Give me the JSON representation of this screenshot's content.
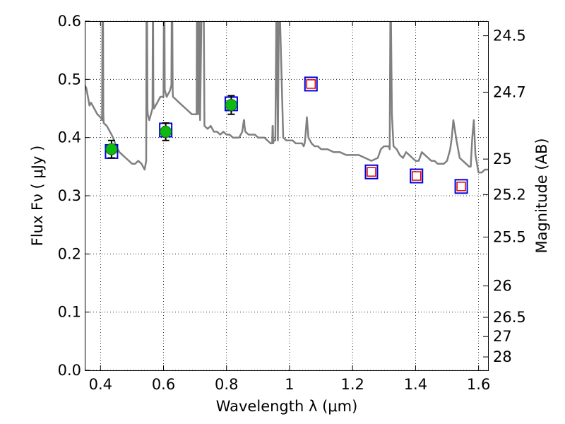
{
  "chart_data": {
    "type": "scatter",
    "xlabel": "Wavelength  λ (μm)",
    "ylabel": "Flux  Fν  ( μJy )",
    "y2label": "Magnitude (AB)",
    "xlim": [
      0.35,
      1.63
    ],
    "ylim": [
      0.0,
      0.6
    ],
    "grid": true,
    "x_ticks": [
      0.4,
      0.6,
      0.8,
      1.0,
      1.2,
      1.4,
      1.6
    ],
    "x_tick_labels": [
      "0.4",
      "0.6",
      "0.8",
      "1",
      "1.2",
      "1.4",
      "1.6"
    ],
    "y_ticks": [
      0.0,
      0.1,
      0.2,
      0.3,
      0.4,
      0.5,
      0.6
    ],
    "y_tick_labels": [
      "0.0",
      "0.1",
      "0.2",
      "0.3",
      "0.4",
      "0.5",
      "0.6"
    ],
    "y2_ticks": [
      {
        "label": "24.5",
        "flux": 0.575
      },
      {
        "label": "24.7",
        "flux": 0.478
      },
      {
        "label": "25",
        "flux": 0.363
      },
      {
        "label": "25.2",
        "flux": 0.302
      },
      {
        "label": "25.5",
        "flux": 0.229
      },
      {
        "label": "26",
        "flux": 0.145
      },
      {
        "label": "26.5",
        "flux": 0.091
      },
      {
        "label": "27",
        "flux": 0.058
      },
      {
        "label": "28",
        "flux": 0.023
      }
    ],
    "colors": {
      "model": "#808080",
      "observed": "#11b811",
      "synthetic_border": "#0000dd",
      "upper_limit_border": "#dd0000",
      "errorbar": "#000000"
    },
    "series": [
      {
        "type": "line",
        "x": [
          0.35,
          0.355,
          0.36,
          0.365,
          0.37,
          0.38,
          0.39,
          0.4,
          0.405,
          0.406,
          0.407,
          0.408,
          0.409,
          0.41,
          0.42,
          0.43,
          0.44,
          0.45,
          0.46,
          0.47,
          0.48,
          0.49,
          0.5,
          0.51,
          0.52,
          0.53,
          0.535,
          0.54,
          0.545,
          0.546,
          0.547,
          0.548,
          0.549,
          0.55,
          0.555,
          0.56,
          0.565,
          0.566,
          0.567,
          0.568,
          0.57,
          0.58,
          0.59,
          0.6,
          0.601,
          0.602,
          0.603,
          0.604,
          0.605,
          0.61,
          0.62,
          0.625,
          0.626,
          0.627,
          0.628,
          0.629,
          0.63,
          0.64,
          0.65,
          0.66,
          0.67,
          0.68,
          0.69,
          0.7,
          0.705,
          0.706,
          0.707,
          0.708,
          0.71,
          0.712,
          0.714,
          0.716,
          0.72,
          0.722,
          0.724,
          0.726,
          0.728,
          0.73,
          0.74,
          0.75,
          0.76,
          0.77,
          0.78,
          0.79,
          0.8,
          0.81,
          0.82,
          0.83,
          0.84,
          0.85,
          0.855,
          0.856,
          0.857,
          0.86,
          0.87,
          0.88,
          0.89,
          0.9,
          0.91,
          0.92,
          0.93,
          0.94,
          0.945,
          0.946,
          0.947,
          0.948,
          0.95,
          0.955,
          0.958,
          0.96,
          0.963,
          0.966,
          0.97,
          0.98,
          0.99,
          1.0,
          1.01,
          1.02,
          1.03,
          1.04,
          1.045,
          1.048,
          1.05,
          1.055,
          1.06,
          1.07,
          1.08,
          1.09,
          1.1,
          1.12,
          1.14,
          1.16,
          1.18,
          1.2,
          1.22,
          1.24,
          1.26,
          1.28,
          1.29,
          1.3,
          1.31,
          1.315,
          1.318,
          1.32,
          1.322,
          1.325,
          1.33,
          1.34,
          1.35,
          1.36,
          1.37,
          1.38,
          1.39,
          1.4,
          1.41,
          1.42,
          1.43,
          1.44,
          1.45,
          1.46,
          1.47,
          1.48,
          1.49,
          1.5,
          1.505,
          1.51,
          1.515,
          1.52,
          1.53,
          1.54,
          1.55,
          1.56,
          1.57,
          1.575,
          1.58,
          1.585,
          1.59,
          1.6,
          1.61,
          1.62,
          1.63
        ],
        "y": [
          0.49,
          0.485,
          0.47,
          0.455,
          0.46,
          0.45,
          0.44,
          0.435,
          0.43,
          0.6,
          0.6,
          0.6,
          0.44,
          0.425,
          0.42,
          0.41,
          0.4,
          0.385,
          0.375,
          0.37,
          0.365,
          0.36,
          0.355,
          0.355,
          0.36,
          0.355,
          0.35,
          0.345,
          0.36,
          0.6,
          0.6,
          0.6,
          0.45,
          0.44,
          0.43,
          0.44,
          0.45,
          0.6,
          0.6,
          0.46,
          0.45,
          0.46,
          0.47,
          0.47,
          0.6,
          0.6,
          0.6,
          0.48,
          0.48,
          0.47,
          0.48,
          0.49,
          0.6,
          0.6,
          0.6,
          0.48,
          0.47,
          0.465,
          0.46,
          0.455,
          0.45,
          0.445,
          0.44,
          0.44,
          0.44,
          0.6,
          0.6,
          0.6,
          0.44,
          0.6,
          0.6,
          0.43,
          0.6,
          0.6,
          0.6,
          0.6,
          0.6,
          0.42,
          0.415,
          0.42,
          0.41,
          0.41,
          0.405,
          0.41,
          0.405,
          0.405,
          0.4,
          0.4,
          0.4,
          0.41,
          0.43,
          0.43,
          0.42,
          0.41,
          0.405,
          0.405,
          0.405,
          0.4,
          0.4,
          0.4,
          0.395,
          0.39,
          0.39,
          0.42,
          0.42,
          0.39,
          0.395,
          0.395,
          0.6,
          0.6,
          0.395,
          0.6,
          0.6,
          0.4,
          0.395,
          0.395,
          0.395,
          0.39,
          0.39,
          0.39,
          0.385,
          0.39,
          0.4,
          0.435,
          0.4,
          0.39,
          0.385,
          0.385,
          0.38,
          0.38,
          0.375,
          0.375,
          0.37,
          0.37,
          0.37,
          0.365,
          0.36,
          0.365,
          0.38,
          0.385,
          0.385,
          0.385,
          0.38,
          0.6,
          0.6,
          0.44,
          0.385,
          0.38,
          0.37,
          0.365,
          0.375,
          0.37,
          0.365,
          0.36,
          0.36,
          0.375,
          0.37,
          0.365,
          0.36,
          0.36,
          0.355,
          0.355,
          0.355,
          0.36,
          0.37,
          0.38,
          0.4,
          0.43,
          0.395,
          0.365,
          0.36,
          0.355,
          0.35,
          0.35,
          0.4,
          0.43,
          0.37,
          0.34,
          0.34,
          0.345,
          0.345
        ]
      },
      {
        "type": "points_with_errors",
        "x": [
          0.435,
          0.607,
          0.815
        ],
        "y": [
          0.38,
          0.41,
          0.456
        ],
        "yerr": [
          0.015,
          0.015,
          0.016
        ]
      },
      {
        "type": "synthetic_photometry",
        "x": [
          0.435,
          0.607,
          0.815,
          1.068,
          1.26,
          1.403,
          1.545
        ],
        "y": [
          0.376,
          0.413,
          0.458,
          0.492,
          0.341,
          0.334,
          0.316
        ]
      },
      {
        "type": "upper_limits",
        "x": [
          1.068,
          1.26,
          1.403,
          1.545
        ],
        "y": [
          0.492,
          0.341,
          0.334,
          0.316
        ]
      }
    ]
  }
}
